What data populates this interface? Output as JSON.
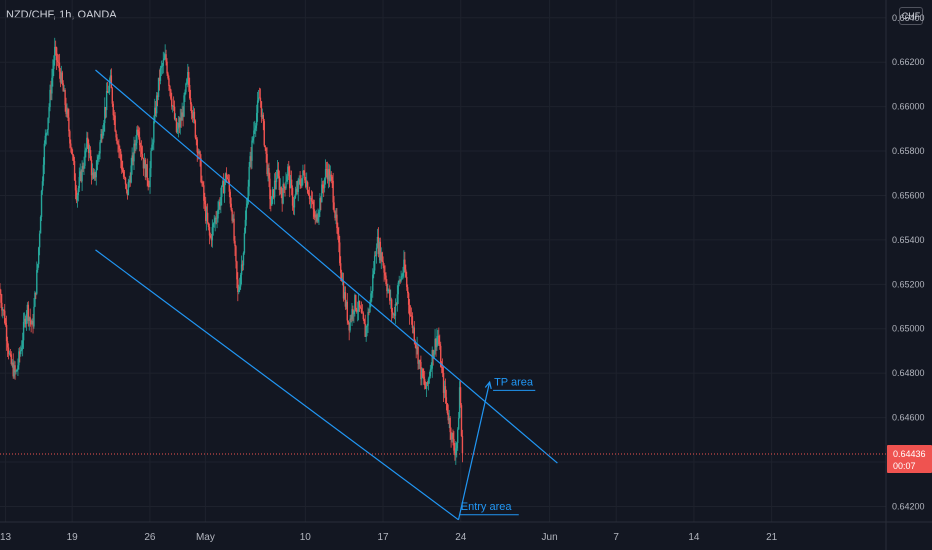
{
  "header": {
    "symbol_line": "NZD/CHF, 1h, OANDA",
    "currency_badge": "CHF"
  },
  "colors": {
    "background": "#131722",
    "up": "#26a69a",
    "down": "#ef5350",
    "channel": "#2196f3",
    "price_line": "#ef5350",
    "axis_text": "#b2b5be"
  },
  "chart_data": {
    "type": "candlestick",
    "symbol": "NZD/CHF",
    "timeframe": "1h",
    "source": "OANDA",
    "ylim": [
      0.6413,
      0.6648
    ],
    "y_ticks": [
      "0.66400",
      "0.66200",
      "0.66000",
      "0.65800",
      "0.65600",
      "0.65400",
      "0.65200",
      "0.65000",
      "0.64800",
      "0.64600",
      "0.64400",
      "0.64200"
    ],
    "x_ticks": [
      {
        "label": "13",
        "day": 0
      },
      {
        "label": "19",
        "day": 6
      },
      {
        "label": "26",
        "day": 13
      },
      {
        "label": "May",
        "day": 18
      },
      {
        "label": "10",
        "day": 27
      },
      {
        "label": "17",
        "day": 34
      },
      {
        "label": "24",
        "day": 41
      },
      {
        "label": "Jun",
        "day": 49
      },
      {
        "label": "7",
        "day": 55
      },
      {
        "label": "14",
        "day": 62
      },
      {
        "label": "21",
        "day": 69
      }
    ],
    "xlim_days": [
      -0.5,
      79.3
    ],
    "last_price": "0.64436",
    "countdown": "00:07",
    "path": [
      [
        -0.5,
        0.6518
      ],
      [
        0,
        0.6505
      ],
      [
        0.5,
        0.6485
      ],
      [
        1,
        0.6479
      ],
      [
        1.5,
        0.6492
      ],
      [
        2,
        0.651
      ],
      [
        2.5,
        0.65
      ],
      [
        3,
        0.653
      ],
      [
        3.5,
        0.6578
      ],
      [
        4,
        0.66
      ],
      [
        4.5,
        0.6625
      ],
      [
        5,
        0.6615
      ],
      [
        5.5,
        0.66
      ],
      [
        6,
        0.6582
      ],
      [
        6.5,
        0.656
      ],
      [
        7,
        0.6572
      ],
      [
        7.5,
        0.6585
      ],
      [
        8,
        0.6565
      ],
      [
        8.5,
        0.658
      ],
      [
        9,
        0.6598
      ],
      [
        9.5,
        0.6612
      ],
      [
        10,
        0.659
      ],
      [
        10.5,
        0.6575
      ],
      [
        11,
        0.656
      ],
      [
        11.5,
        0.6575
      ],
      [
        12,
        0.6592
      ],
      [
        12.5,
        0.6575
      ],
      [
        13,
        0.6566
      ],
      [
        13.5,
        0.6595
      ],
      [
        14,
        0.6615
      ],
      [
        14.5,
        0.6622
      ],
      [
        15,
        0.6605
      ],
      [
        15.5,
        0.6588
      ],
      [
        16,
        0.6596
      ],
      [
        16.5,
        0.6613
      ],
      [
        17,
        0.6595
      ],
      [
        17.5,
        0.6578
      ],
      [
        18,
        0.6555
      ],
      [
        18.5,
        0.654
      ],
      [
        19,
        0.655
      ],
      [
        19.5,
        0.656
      ],
      [
        20,
        0.657
      ],
      [
        20.5,
        0.6552
      ],
      [
        21,
        0.6515
      ],
      [
        21.5,
        0.6535
      ],
      [
        22,
        0.657
      ],
      [
        22.5,
        0.6592
      ],
      [
        23,
        0.6605
      ],
      [
        23.5,
        0.658
      ],
      [
        24,
        0.6555
      ],
      [
        24.5,
        0.657
      ],
      [
        25,
        0.656
      ],
      [
        25.5,
        0.6572
      ],
      [
        26,
        0.6556
      ],
      [
        26.5,
        0.6565
      ],
      [
        27,
        0.657
      ],
      [
        27.5,
        0.656
      ],
      [
        28,
        0.6548
      ],
      [
        28.5,
        0.656
      ],
      [
        29,
        0.6572
      ],
      [
        29.5,
        0.6565
      ],
      [
        30,
        0.654
      ],
      [
        30.5,
        0.6518
      ],
      [
        31,
        0.6502
      ],
      [
        31.5,
        0.6512
      ],
      [
        32,
        0.6508
      ],
      [
        32.5,
        0.6498
      ],
      [
        33,
        0.6515
      ],
      [
        33.5,
        0.654
      ],
      [
        34,
        0.6532
      ],
      [
        34.5,
        0.6518
      ],
      [
        35,
        0.6505
      ],
      [
        35.5,
        0.652
      ],
      [
        36,
        0.6528
      ],
      [
        36.5,
        0.6508
      ],
      [
        37,
        0.6495
      ],
      [
        37.5,
        0.648
      ],
      [
        38,
        0.6472
      ],
      [
        38.5,
        0.6488
      ],
      [
        39,
        0.6498
      ],
      [
        39.5,
        0.6475
      ],
      [
        40,
        0.646
      ],
      [
        40.5,
        0.6445
      ],
      [
        40.8,
        0.645
      ],
      [
        41,
        0.6476
      ],
      [
        41.2,
        0.6444
      ]
    ],
    "annotations": [
      {
        "type": "channel_upper",
        "points": [
          [
            8.1,
            0.66165
          ],
          [
            49.7,
            0.64395
          ]
        ]
      },
      {
        "type": "channel_lower",
        "points": [
          [
            8.1,
            0.65355
          ],
          [
            40.8,
            0.6414
          ]
        ]
      },
      {
        "type": "path",
        "points": [
          [
            40.8,
            0.6414
          ],
          [
            43.6,
            0.6476
          ]
        ]
      },
      {
        "type": "text",
        "label": "TP area",
        "at": [
          44.0,
          0.64745
        ]
      },
      {
        "type": "text",
        "label": "Entry area",
        "at": [
          41.0,
          0.64185
        ]
      }
    ]
  }
}
